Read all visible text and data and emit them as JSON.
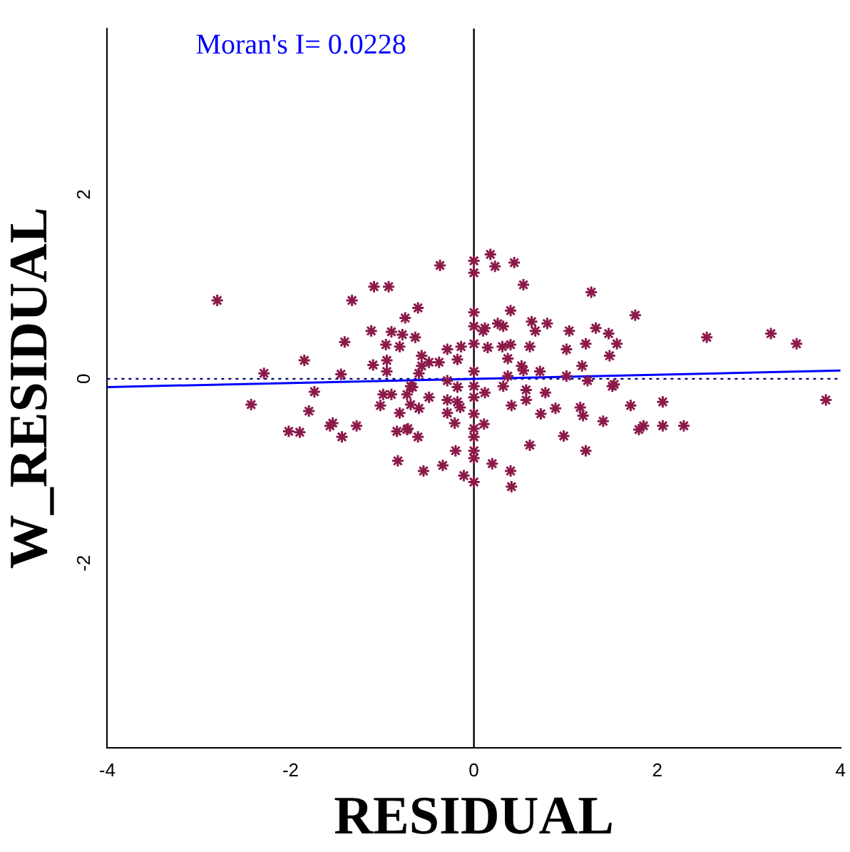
{
  "chart_data": {
    "type": "scatter",
    "xlabel": "RESIDUAL",
    "ylabel": "W_RESIDUAL",
    "annotations": [
      "Moran's I= 0.0228"
    ],
    "xlim": [
      -4,
      4
    ],
    "xticks": [
      -4,
      -2,
      0,
      2,
      4
    ],
    "ylim": [
      -4,
      3.8
    ],
    "yticks": [
      -2,
      0,
      2
    ],
    "grid": false,
    "legend": false,
    "marker": "cross",
    "ref_lines": [
      {
        "axis": "x",
        "value": 0,
        "color": "#000000",
        "line_style": "solid"
      },
      {
        "axis": "y",
        "value": 0,
        "color": "#000080",
        "line_style": "dotted"
      }
    ],
    "series": [
      {
        "color": "#8b1a4a",
        "x": [
          -2.8,
          -2.29,
          -2.43,
          -1.85,
          -1.74,
          -1.8,
          -2.02,
          -1.9,
          -1.57,
          -1.54,
          -1.44,
          -1.28,
          -1.45,
          -1.41,
          -1.33,
          -1.09,
          -0.93,
          -1.12,
          -0.9,
          -0.96,
          -0.81,
          -0.78,
          -0.75,
          -1.1,
          -0.95,
          -0.95,
          -1.02,
          -0.99,
          -0.9,
          -0.73,
          -0.81,
          -0.84,
          -0.73,
          -0.83,
          -0.69,
          -0.37,
          0,
          0,
          0.18,
          0.23,
          0.44,
          0.54,
          1.28,
          -0.61,
          -0.64,
          0,
          0,
          0.1,
          0.12,
          0.26,
          0.32,
          0.4,
          0.63,
          0.67,
          0.8,
          1.04,
          1.33,
          1.47,
          1.56,
          1.48,
          1.22,
          1.01,
          0.61,
          0.4,
          0.31,
          0.15,
          0,
          -0.14,
          -0.29,
          -0.18,
          -0.57,
          -0.49,
          -0.38,
          -0.57,
          -0.6,
          0.37,
          0.52,
          0.54,
          0.72,
          0.37,
          1.18,
          1.01,
          1.24,
          1.51,
          0.32,
          0.57,
          0.78,
          0.57,
          0.41,
          0.12,
          0,
          0,
          0,
          0,
          0,
          0,
          0.11,
          0,
          0,
          0,
          0.2,
          0.4,
          0.41,
          -0.11,
          -0.34,
          -0.55,
          -0.2,
          -0.21,
          0.61,
          0.73,
          0.89,
          1.16,
          1.19,
          1.41,
          0.98,
          1.22,
          -0.18,
          -0.29,
          -0.18,
          -0.15,
          -0.29,
          -0.49,
          -0.6,
          -0.69,
          -0.72,
          -0.61,
          -0.67,
          -0.29,
          1.76,
          2.54,
          3.24,
          3.52,
          3.84,
          1.53,
          1.71,
          2.06,
          1.8,
          1.85,
          2.06,
          2.29
        ],
        "values": [
          0.85,
          0.06,
          -0.28,
          0.2,
          -0.14,
          -0.35,
          -0.57,
          -0.58,
          -0.51,
          -0.48,
          -0.63,
          -0.51,
          0.05,
          0.4,
          0.85,
          1,
          1,
          0.52,
          0.51,
          0.37,
          0.35,
          0.48,
          0.66,
          0.15,
          0.2,
          0.08,
          -0.29,
          -0.17,
          -0.17,
          -0.17,
          -0.37,
          -0.57,
          -0.55,
          -0.89,
          -0.08,
          1.23,
          1.28,
          1.15,
          1.35,
          1.22,
          1.26,
          1.02,
          0.94,
          0.77,
          0.45,
          0.72,
          0.57,
          0.52,
          0.55,
          0.6,
          0.57,
          0.74,
          0.62,
          0.52,
          0.6,
          0.52,
          0.55,
          0.49,
          0.38,
          0.25,
          0.38,
          0.32,
          0.35,
          0.37,
          0.35,
          0.34,
          0.38,
          0.35,
          0.32,
          0.21,
          0.25,
          0.18,
          0.18,
          0.14,
          0.06,
          0.22,
          0.14,
          0.09,
          0.08,
          0.03,
          0.14,
          0.03,
          -0.02,
          -0.08,
          -0.08,
          -0.12,
          -0.15,
          -0.23,
          -0.29,
          -0.15,
          0.08,
          -0.08,
          -0.2,
          -0.38,
          -0.54,
          -0.63,
          -0.49,
          -0.78,
          -0.86,
          -1.12,
          -0.92,
          -1,
          -1.17,
          -1.05,
          -0.94,
          -1,
          -0.78,
          -0.48,
          -0.72,
          -0.38,
          -0.32,
          -0.31,
          -0.4,
          -0.46,
          -0.62,
          -0.78,
          -0.09,
          -0.23,
          -0.25,
          -0.31,
          -0.37,
          -0.2,
          -0.32,
          -0.28,
          -0.54,
          -0.63,
          -0.09,
          -0.02,
          0.69,
          0.45,
          0.49,
          0.38,
          -0.23,
          -0.06,
          -0.29,
          -0.25,
          -0.55,
          -0.51,
          -0.51,
          -0.51
        ]
      },
      {
        "type": "line",
        "marker": "none",
        "color": "#0000ff",
        "x": [
          -4,
          4
        ],
        "values": [
          -0.09,
          0.09
        ]
      }
    ]
  }
}
